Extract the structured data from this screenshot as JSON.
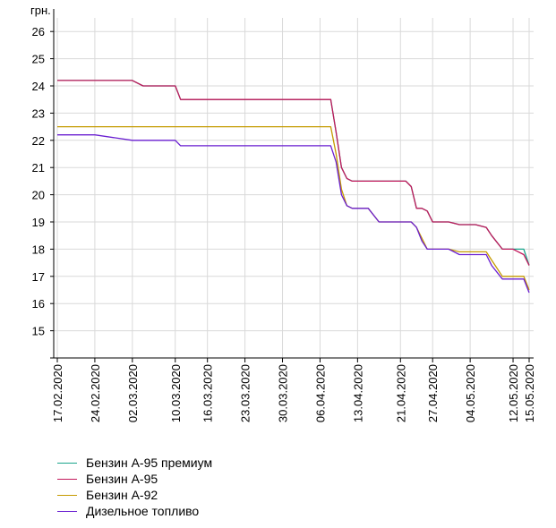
{
  "chart_data": {
    "type": "line",
    "ylabel": "грн.",
    "ylim": [
      14,
      26.5
    ],
    "yticks": [
      15,
      16,
      17,
      18,
      19,
      20,
      21,
      22,
      23,
      24,
      25,
      26
    ],
    "xticks": [
      "17.02.2020",
      "24.02.2020",
      "02.03.2020",
      "10.03.2020",
      "16.03.2020",
      "23.03.2020",
      "30.03.2020",
      "06.04.2020",
      "13.04.2020",
      "21.04.2020",
      "27.04.2020",
      "04.05.2020",
      "12.05.2020",
      "15.05.2020"
    ],
    "x": [
      "17.02.2020",
      "24.02.2020",
      "02.03.2020",
      "04.03.2020",
      "10.03.2020",
      "11.03.2020",
      "16.03.2020",
      "23.03.2020",
      "30.03.2020",
      "06.04.2020",
      "08.04.2020",
      "09.04.2020",
      "10.04.2020",
      "11.04.2020",
      "12.04.2020",
      "13.04.2020",
      "15.04.2020",
      "17.04.2020",
      "20.04.2020",
      "21.04.2020",
      "22.04.2020",
      "23.04.2020",
      "24.04.2020",
      "25.04.2020",
      "26.04.2020",
      "27.04.2020",
      "28.04.2020",
      "30.04.2020",
      "02.05.2020",
      "04.05.2020",
      "05.05.2020",
      "07.05.2020",
      "08.05.2020",
      "10.05.2020",
      "12.05.2020",
      "14.05.2020",
      "15.05.2020"
    ],
    "series": [
      {
        "name": "Бензин А-95 премиум",
        "color": "#1aa58c",
        "values": [
          24.2,
          24.2,
          24.2,
          24.0,
          24.0,
          23.5,
          23.5,
          23.5,
          23.5,
          23.5,
          23.5,
          22.3,
          21.0,
          20.6,
          20.5,
          20.5,
          20.5,
          20.5,
          20.5,
          20.5,
          20.5,
          20.3,
          19.5,
          19.5,
          19.4,
          19.0,
          19.0,
          19.0,
          18.9,
          18.9,
          18.9,
          18.8,
          18.5,
          18.0,
          18.0,
          18.0,
          17.4
        ]
      },
      {
        "name": "Бензин А-95",
        "color": "#c2185b",
        "values": [
          24.2,
          24.2,
          24.2,
          24.0,
          24.0,
          23.5,
          23.5,
          23.5,
          23.5,
          23.5,
          23.5,
          22.3,
          21.0,
          20.6,
          20.5,
          20.5,
          20.5,
          20.5,
          20.5,
          20.5,
          20.5,
          20.3,
          19.5,
          19.5,
          19.4,
          19.0,
          19.0,
          19.0,
          18.9,
          18.9,
          18.9,
          18.8,
          18.5,
          18.0,
          18.0,
          17.8,
          17.4
        ]
      },
      {
        "name": "Бензин А-92",
        "color": "#c59a00",
        "values": [
          22.5,
          22.5,
          22.5,
          22.5,
          22.5,
          22.5,
          22.5,
          22.5,
          22.5,
          22.5,
          22.5,
          21.5,
          20.2,
          19.6,
          19.5,
          19.5,
          19.5,
          19.0,
          19.0,
          19.0,
          19.0,
          19.0,
          18.8,
          18.4,
          18.0,
          18.0,
          18.0,
          18.0,
          17.9,
          17.9,
          17.9,
          17.9,
          17.6,
          17.0,
          17.0,
          17.0,
          16.5
        ]
      },
      {
        "name": "Дизельное топливо",
        "color": "#6a1fd1",
        "values": [
          22.2,
          22.2,
          22.0,
          22.0,
          22.0,
          21.8,
          21.8,
          21.8,
          21.8,
          21.8,
          21.8,
          21.2,
          20.0,
          19.6,
          19.5,
          19.5,
          19.5,
          19.0,
          19.0,
          19.0,
          19.0,
          19.0,
          18.8,
          18.3,
          18.0,
          18.0,
          18.0,
          18.0,
          17.8,
          17.8,
          17.8,
          17.8,
          17.4,
          16.9,
          16.9,
          16.9,
          16.4
        ]
      }
    ]
  }
}
